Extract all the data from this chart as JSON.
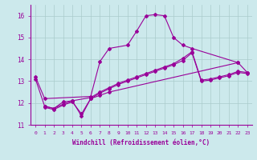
{
  "xlabel": "Windchill (Refroidissement éolien,°C)",
  "xlim": [
    -0.5,
    23.5
  ],
  "ylim": [
    11,
    16.5
  ],
  "yticks": [
    11,
    12,
    13,
    14,
    15,
    16
  ],
  "xticks": [
    0,
    1,
    2,
    3,
    4,
    5,
    6,
    7,
    8,
    9,
    10,
    11,
    12,
    13,
    14,
    15,
    16,
    17,
    18,
    19,
    20,
    21,
    22,
    23
  ],
  "bg_color": "#cce9ec",
  "grid_color": "#aacccc",
  "line_color": "#990099",
  "series1_x": [
    0,
    1,
    6,
    7,
    8,
    10,
    11,
    12,
    13,
    14,
    15,
    16,
    17,
    22,
    23
  ],
  "series1_y": [
    13.2,
    12.2,
    12.3,
    13.9,
    14.5,
    14.65,
    15.3,
    16.0,
    16.05,
    16.0,
    15.0,
    14.65,
    14.5,
    13.85,
    13.4
  ],
  "series2_x": [
    1,
    2,
    3,
    4,
    5,
    6,
    7,
    8,
    22
  ],
  "series2_y": [
    11.85,
    11.75,
    12.05,
    12.1,
    11.4,
    12.2,
    12.35,
    12.5,
    13.85
  ],
  "series3_x": [
    0,
    1,
    2,
    3,
    4,
    6,
    7,
    8,
    9,
    10,
    11,
    12,
    13,
    14,
    15,
    16,
    17,
    18,
    19,
    20,
    21,
    22,
    23
  ],
  "series3_y": [
    13.1,
    11.85,
    11.75,
    11.95,
    12.1,
    12.25,
    12.5,
    12.7,
    12.9,
    13.05,
    13.2,
    13.35,
    13.5,
    13.65,
    13.8,
    14.05,
    14.35,
    13.05,
    13.1,
    13.2,
    13.3,
    13.45,
    13.4
  ],
  "series4_x": [
    1,
    2,
    3,
    4,
    5,
    6,
    7,
    8,
    9,
    10,
    11,
    12,
    13,
    14,
    15,
    16,
    17,
    18,
    19,
    20,
    21,
    22,
    23
  ],
  "series4_y": [
    11.8,
    11.7,
    11.9,
    12.05,
    11.5,
    12.2,
    12.45,
    12.65,
    12.85,
    13.0,
    13.15,
    13.3,
    13.45,
    13.6,
    13.75,
    13.95,
    14.3,
    13.0,
    13.05,
    13.15,
    13.25,
    13.4,
    13.35
  ]
}
